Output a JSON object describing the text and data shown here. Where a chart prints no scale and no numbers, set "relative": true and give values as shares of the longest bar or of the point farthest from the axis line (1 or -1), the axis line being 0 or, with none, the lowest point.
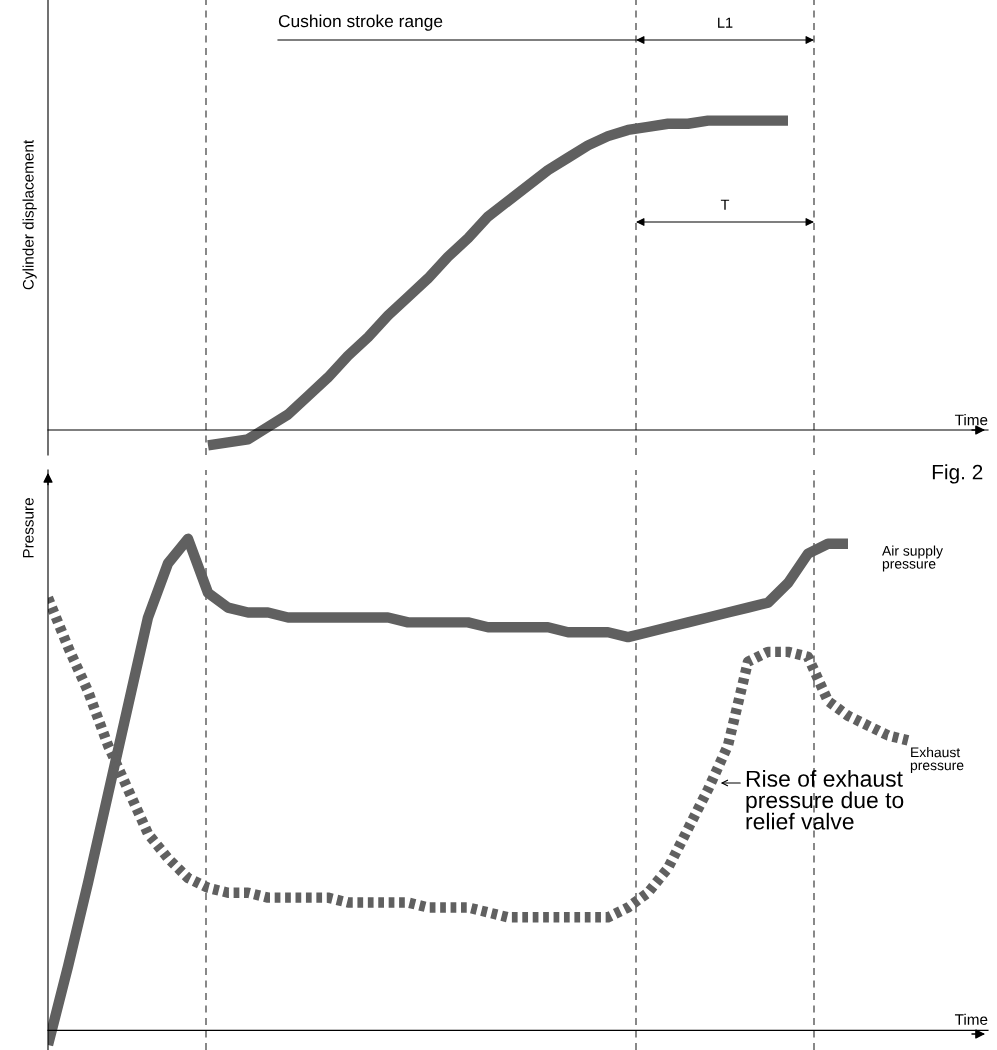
{
  "chart_data": [
    {
      "type": "line",
      "relative": true,
      "tick_labels": false,
      "ylabel": "Cylinder displacement",
      "xlabel": "Time",
      "categories": [
        null,
        null,
        null,
        null,
        null,
        null,
        null,
        null,
        null,
        null,
        null,
        null,
        null,
        null,
        null,
        null,
        null,
        null,
        null,
        null,
        null,
        null,
        null,
        null,
        null,
        null,
        null,
        null,
        null,
        null,
        null,
        null,
        null,
        null,
        null,
        null,
        null,
        null,
        null,
        null,
        null,
        null,
        null,
        null,
        null,
        null,
        null,
        null
      ],
      "series": [
        {
          "color": "#606060",
          "line_style": "solid",
          "values": [
            null,
            null,
            null,
            null,
            null,
            null,
            null,
            null,
            -0.05,
            -0.04,
            -0.03,
            0.01,
            0.05,
            0.11,
            0.17,
            0.24,
            0.3,
            0.37,
            0.43,
            0.49,
            0.56,
            0.62,
            0.69,
            0.74,
            0.79,
            0.84,
            0.88,
            0.92,
            0.95,
            0.97,
            0.98,
            0.99,
            0.99,
            1.0,
            1.0,
            1.0,
            1.0,
            1.0,
            null,
            null,
            null,
            null,
            null,
            null,
            null,
            null,
            null,
            null
          ]
        }
      ],
      "annotations": [
        "Cushion stroke range",
        "L1",
        "T"
      ]
    },
    {
      "type": "line",
      "relative": true,
      "tick_labels": false,
      "ylabel": "Pressure",
      "xlabel": "Time",
      "categories": [
        null,
        null,
        null,
        null,
        null,
        null,
        null,
        null,
        null,
        null,
        null,
        null,
        null,
        null,
        null,
        null,
        null,
        null,
        null,
        null,
        null,
        null,
        null,
        null,
        null,
        null,
        null,
        null,
        null,
        null,
        null,
        null,
        null,
        null,
        null,
        null,
        null,
        null,
        null,
        null,
        null,
        null,
        null,
        null,
        null,
        null,
        null,
        null
      ],
      "series": [
        {
          "name": "Air supply\npressure",
          "color": "#606060",
          "line_style": "solid",
          "values": [
            -0.03,
            0.13,
            0.3,
            0.48,
            0.66,
            0.84,
            0.95,
            1.0,
            0.89,
            0.86,
            0.85,
            0.85,
            0.84,
            0.84,
            0.84,
            0.84,
            0.84,
            0.84,
            0.83,
            0.83,
            0.83,
            0.83,
            0.82,
            0.82,
            0.82,
            0.82,
            0.81,
            0.81,
            0.81,
            0.8,
            0.81,
            0.82,
            0.83,
            0.84,
            0.85,
            0.86,
            0.87,
            0.91,
            0.97,
            0.99,
            0.99,
            null,
            null,
            null,
            null,
            null,
            null,
            null
          ]
        },
        {
          "name": "Exhaust\npressure",
          "color": "#606060",
          "line_style": "dotted",
          "values": [
            0.88,
            0.78,
            0.69,
            0.58,
            0.49,
            0.4,
            0.35,
            0.31,
            0.29,
            0.28,
            0.28,
            0.27,
            0.27,
            0.27,
            0.27,
            0.26,
            0.26,
            0.26,
            0.26,
            0.25,
            0.25,
            0.25,
            0.24,
            0.23,
            0.23,
            0.23,
            0.23,
            0.23,
            0.23,
            0.25,
            0.28,
            0.33,
            0.41,
            0.49,
            0.58,
            0.75,
            0.77,
            0.77,
            0.76,
            0.67,
            0.64,
            0.62,
            0.6,
            0.59,
            null,
            null,
            null,
            null
          ]
        }
      ],
      "annotations": [
        "Fig. 2",
        "Rise of exhaust\npressure due to\nrelief valve"
      ]
    }
  ]
}
